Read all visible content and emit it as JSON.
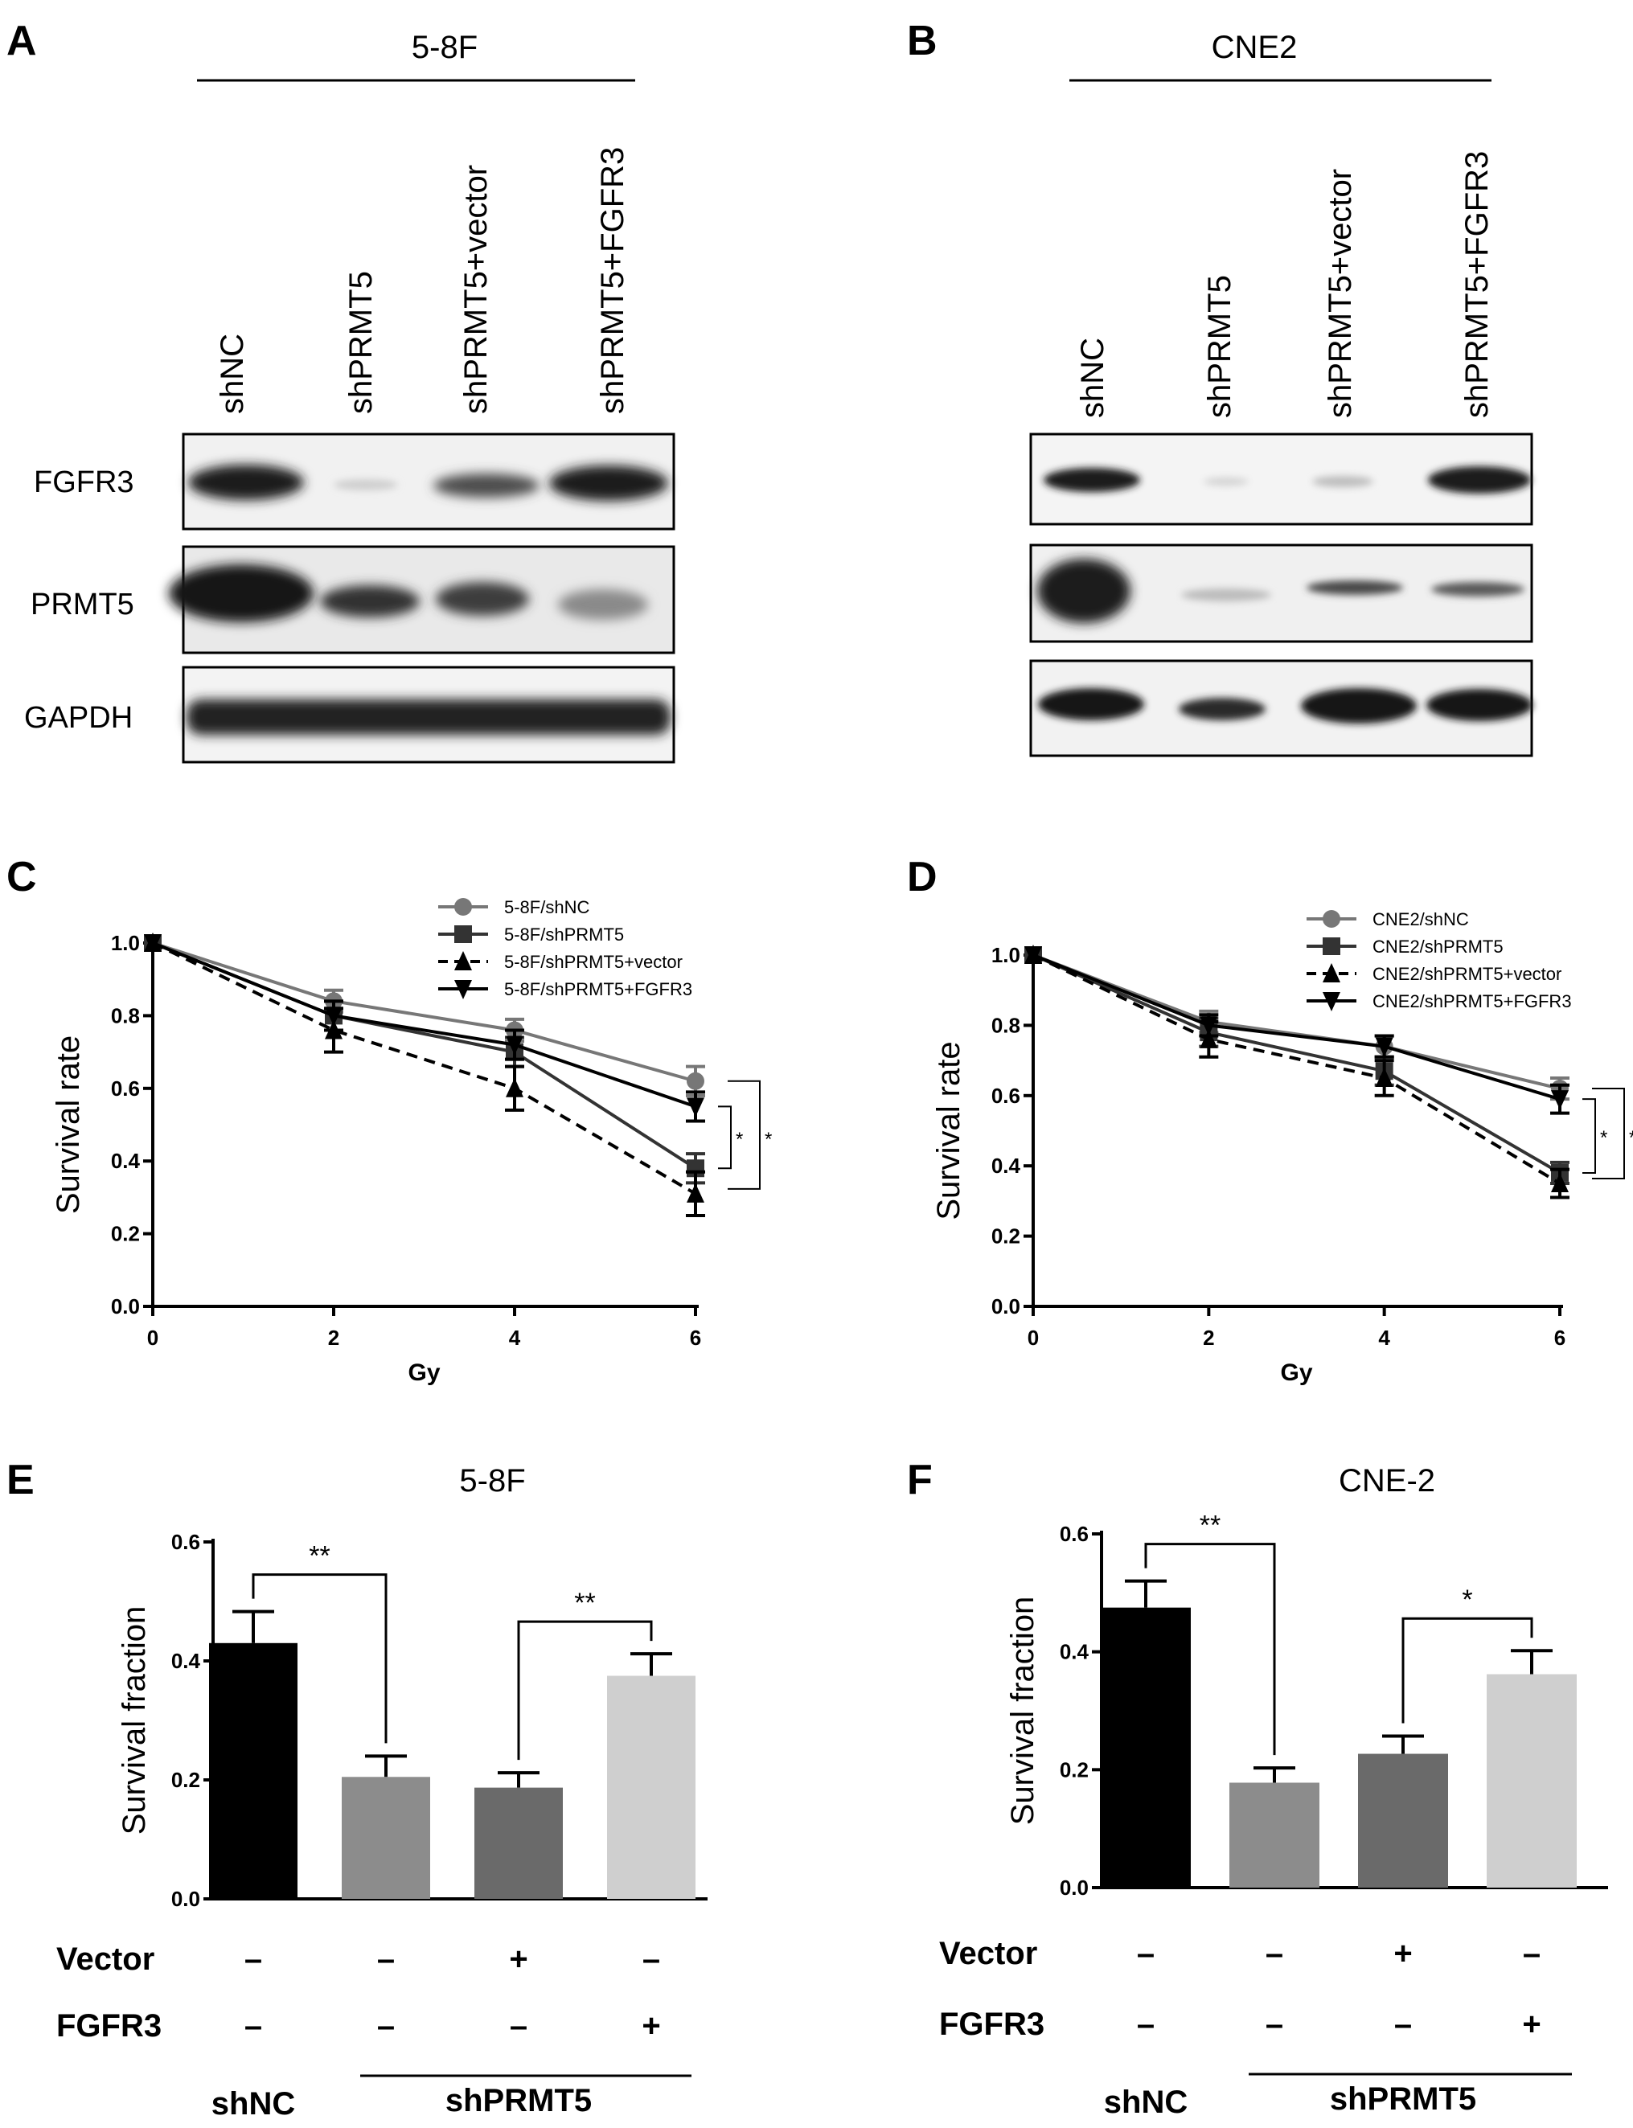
{
  "panels": {
    "A": "A",
    "B": "B",
    "C": "C",
    "D": "D",
    "E": "E",
    "F": "F"
  },
  "blots": [
    {
      "cell": "5-8F",
      "lanes": [
        "shNC",
        "shPRMT5",
        "shPRMT5+vector",
        "shPRMT5+FGFR3"
      ],
      "proteins": [
        "FGFR3",
        "PRMT5",
        "GAPDH"
      ]
    },
    {
      "cell": "CNE2",
      "lanes": [
        "shNC",
        "shPRMT5",
        "shPRMT5+vector",
        "shPRMT5+FGFR3"
      ]
    }
  ],
  "sig": {
    "one": "*",
    "two": "**"
  },
  "rows": {
    "vector": "Vector",
    "fgfr3": "FGFR3",
    "plus": "+",
    "minus": "–"
  },
  "groups": {
    "shnc": "shNC",
    "shprmt5": "shPRMT5"
  },
  "chart_data": [
    {
      "panel": "C",
      "type": "line",
      "xlabel": "Gy",
      "ylabel": "Survival rate",
      "x": [
        0,
        2,
        4,
        6
      ],
      "xticks": [
        0,
        2,
        4,
        6
      ],
      "ylim": [
        0,
        1.0
      ],
      "yticks": [
        "0.0",
        "0.2",
        "0.4",
        "0.6",
        "0.8",
        "1.0"
      ],
      "legend": "top-right",
      "series": [
        {
          "name": "5-8F/shNC",
          "values": [
            1.0,
            0.84,
            0.76,
            0.62
          ],
          "errors": [
            0,
            0.03,
            0.03,
            0.04
          ],
          "marker": "circle",
          "dash": false,
          "color": "#777777"
        },
        {
          "name": "5-8F/shPRMT5",
          "values": [
            1.0,
            0.8,
            0.7,
            0.38
          ],
          "errors": [
            0,
            0.04,
            0.04,
            0.04
          ],
          "marker": "square",
          "dash": false,
          "color": "#333333"
        },
        {
          "name": "5-8F/shPRMT5+vector",
          "values": [
            1.0,
            0.76,
            0.6,
            0.31
          ],
          "errors": [
            0,
            0.06,
            0.06,
            0.06
          ],
          "marker": "triangle-up",
          "dash": true,
          "color": "#000000"
        },
        {
          "name": "5-8F/shPRMT5+FGFR3",
          "values": [
            1.0,
            0.8,
            0.72,
            0.55
          ],
          "errors": [
            0,
            0.04,
            0.04,
            0.04
          ],
          "marker": "triangle-down",
          "dash": false,
          "color": "#000000"
        }
      ]
    },
    {
      "panel": "D",
      "type": "line",
      "xlabel": "Gy",
      "ylabel": "Survival rate",
      "x": [
        0,
        2,
        4,
        6
      ],
      "xticks": [
        0,
        2,
        4,
        6
      ],
      "ylim": [
        0,
        1.0
      ],
      "yticks": [
        "0.0",
        "0.2",
        "0.4",
        "0.6",
        "0.8",
        "1.0"
      ],
      "legend": "top-right",
      "series": [
        {
          "name": "CNE2/shNC",
          "values": [
            1.0,
            0.81,
            0.74,
            0.62
          ],
          "errors": [
            0,
            0.03,
            0.03,
            0.03
          ],
          "marker": "circle",
          "dash": false,
          "color": "#777777"
        },
        {
          "name": "CNE2/shPRMT5",
          "values": [
            1.0,
            0.78,
            0.67,
            0.38
          ],
          "errors": [
            0,
            0.04,
            0.04,
            0.03
          ],
          "marker": "square",
          "dash": false,
          "color": "#333333"
        },
        {
          "name": "CNE2/shPRMT5+vector",
          "values": [
            1.0,
            0.76,
            0.65,
            0.35
          ],
          "errors": [
            0,
            0.05,
            0.05,
            0.04
          ],
          "marker": "triangle-up",
          "dash": true,
          "color": "#000000"
        },
        {
          "name": "CNE2/shPRMT5+FGFR3",
          "values": [
            1.0,
            0.8,
            0.74,
            0.59
          ],
          "errors": [
            0,
            0.03,
            0.03,
            0.04
          ],
          "marker": "triangle-down",
          "dash": false,
          "color": "#000000"
        }
      ]
    },
    {
      "panel": "E",
      "type": "bar",
      "title": "5-8F",
      "ylabel": "Survival fraction",
      "categories": [
        "shNC",
        "shPRMT5",
        "shPRMT5+vector",
        "shPRMT5+FGFR3"
      ],
      "values": [
        0.43,
        0.205,
        0.187,
        0.375
      ],
      "errors": [
        0.053,
        0.035,
        0.025,
        0.037
      ],
      "colors": [
        "#000000",
        "#8c8c8c",
        "#6a6a6a",
        "#cfcfcf"
      ],
      "ylim": [
        0,
        0.6
      ],
      "yticks": [
        "0.0",
        "0.2",
        "0.4",
        "0.6"
      ],
      "vector": [
        "–",
        "–",
        "+",
        "–"
      ],
      "fgfr3": [
        "–",
        "–",
        "–",
        "+"
      ],
      "comparisons": [
        {
          "from": 0,
          "to": 1,
          "label": "**"
        },
        {
          "from": 2,
          "to": 3,
          "label": "**"
        }
      ]
    },
    {
      "panel": "F",
      "type": "bar",
      "title": "CNE-2",
      "ylabel": "Survival fraction",
      "categories": [
        "shNC",
        "shPRMT5",
        "shPRMT5+vector",
        "shPRMT5+FGFR3"
      ],
      "values": [
        0.475,
        0.178,
        0.227,
        0.362
      ],
      "errors": [
        0.045,
        0.025,
        0.03,
        0.04
      ],
      "colors": [
        "#000000",
        "#8c8c8c",
        "#6a6a6a",
        "#cfcfcf"
      ],
      "ylim": [
        0,
        0.6
      ],
      "yticks": [
        "0.0",
        "0.2",
        "0.4",
        "0.6"
      ],
      "vector": [
        "–",
        "–",
        "+",
        "–"
      ],
      "fgfr3": [
        "–",
        "–",
        "–",
        "+"
      ],
      "comparisons": [
        {
          "from": 0,
          "to": 1,
          "label": "**"
        },
        {
          "from": 2,
          "to": 3,
          "label": "*"
        }
      ]
    }
  ]
}
